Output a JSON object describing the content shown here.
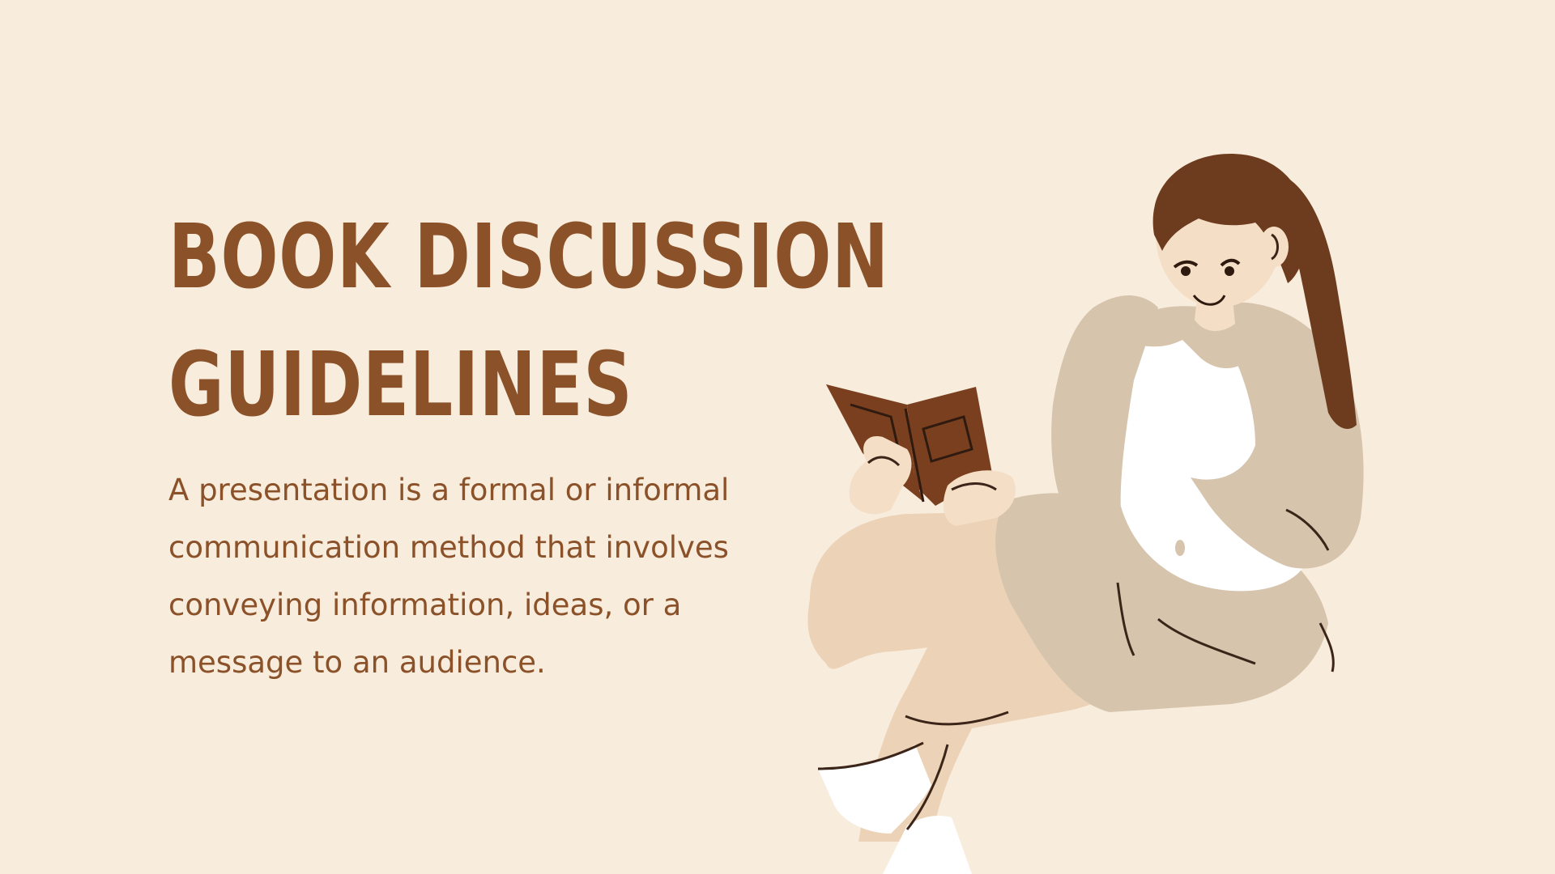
{
  "slide": {
    "title_line1": "BOOK DISCUSSION",
    "title_line2": "GUIDELINES",
    "body": "A presentation is a formal or informal communication method that involves conveying information, ideas, or a message to an audience."
  },
  "illustration": {
    "icon": "girl-reading-book-illustration"
  },
  "colors": {
    "background": "#f8ecdd",
    "text": "#8b5128",
    "hair": "#6d3b1e",
    "book": "#7a3f1f",
    "skin": "#f4dfc6",
    "cardigan": "#d6c4ad",
    "legs": "#ecd3b8"
  }
}
